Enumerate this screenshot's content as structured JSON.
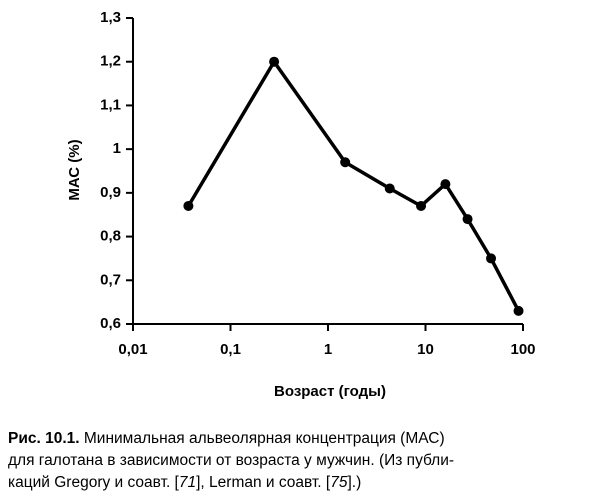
{
  "chart_data": {
    "type": "line",
    "xlabel": "Возраст (годы)",
    "ylabel": "МАС (%)",
    "x": [
      0.037,
      0.28,
      1.5,
      4.3,
      9,
      16,
      27,
      47,
      90
    ],
    "values": [
      0.87,
      1.2,
      0.97,
      0.91,
      0.87,
      0.92,
      0.84,
      0.75,
      0.63
    ],
    "color": "#000000",
    "xscale": "log",
    "xlim": [
      0.01,
      100
    ],
    "ylim": [
      0.6,
      1.3
    ],
    "xticks": [
      {
        "value": 0.01,
        "label": "0,01"
      },
      {
        "value": 0.1,
        "label": "0,1"
      },
      1,
      10,
      100
    ],
    "yticks": [
      {
        "value": 0.6,
        "label": "0,6"
      },
      {
        "value": 0.7,
        "label": "0,7"
      },
      {
        "value": 0.8,
        "label": "0,8"
      },
      {
        "value": 0.9,
        "label": "0,9"
      },
      1,
      {
        "value": 1.1,
        "label": "1,1"
      },
      {
        "value": 1.2,
        "label": "1,2"
      },
      {
        "value": 1.3,
        "label": "1,3"
      }
    ]
  },
  "caption": {
    "label": "Рис. 10.1.",
    "line1": " Минимальная альвеолярная концентрация (МАС)",
    "line2": "для галотана в зависимости от возраста у мужчин. (Из публи-",
    "line3": [
      "каций Gregory и соавт. [",
      "71",
      "], Lerman и соавт. [",
      "75",
      "].)"
    ]
  }
}
